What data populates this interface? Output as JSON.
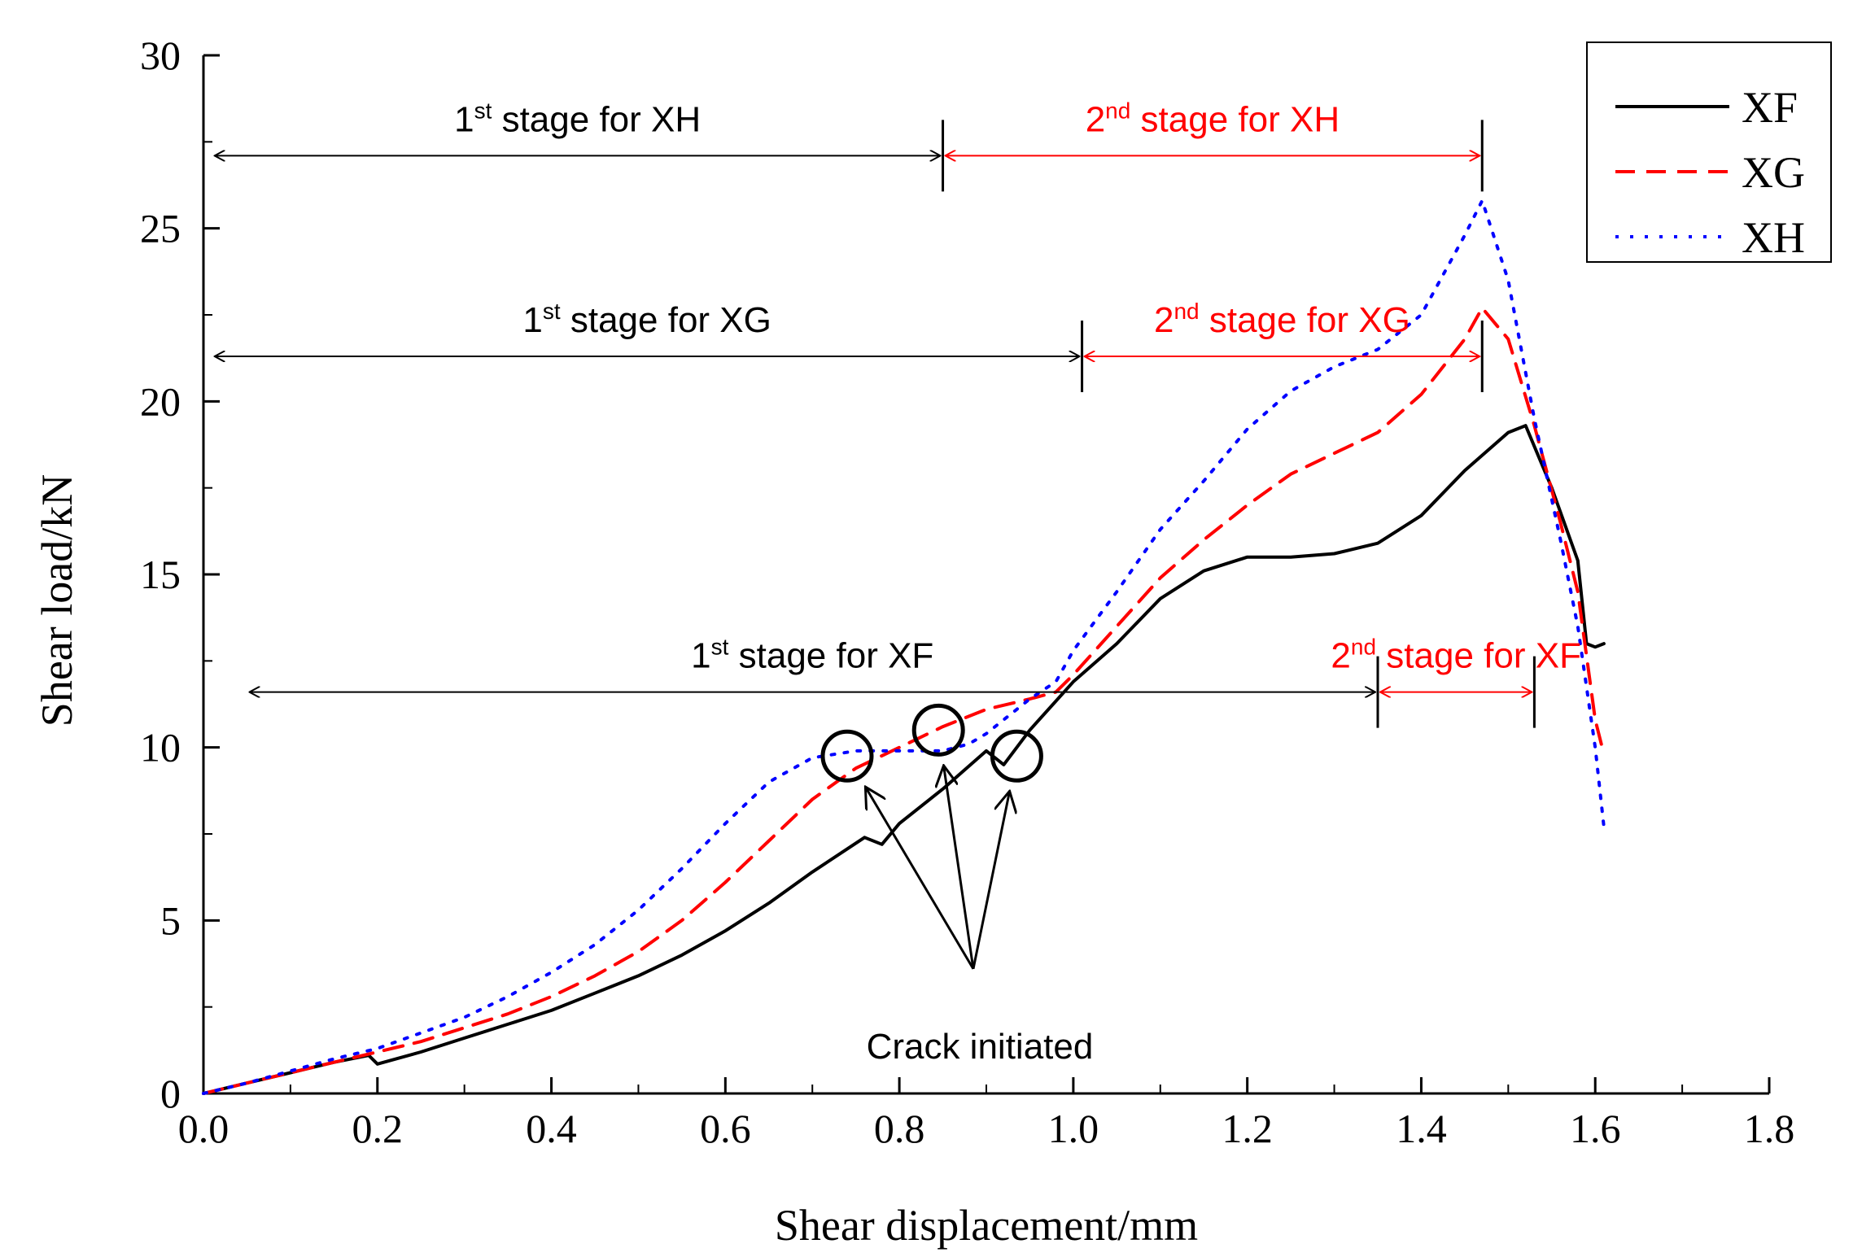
{
  "chart_data": {
    "type": "line",
    "title": "",
    "xlabel": "Shear displacement/mm",
    "ylabel": "Shear load/kN",
    "xlim": [
      0,
      1.8
    ],
    "ylim": [
      0,
      30
    ],
    "xticks": [
      0.0,
      0.2,
      0.4,
      0.6,
      0.8,
      1.0,
      1.2,
      1.4,
      1.6,
      1.8
    ],
    "xtick_labels": [
      "0.0",
      "0.2",
      "0.4",
      "0.6",
      "0.8",
      "1.0",
      "1.2",
      "1.4",
      "1.6",
      "1.8"
    ],
    "yticks": [
      0,
      5,
      10,
      15,
      20,
      25,
      30
    ],
    "ytick_labels": [
      "0",
      "5",
      "10",
      "15",
      "20",
      "25",
      "30"
    ],
    "grid": false,
    "legend_position": "top-right",
    "series": [
      {
        "name": "XF",
        "color": "#000000",
        "style": "solid",
        "x": [
          0.0,
          0.05,
          0.1,
          0.15,
          0.19,
          0.2,
          0.25,
          0.3,
          0.35,
          0.4,
          0.45,
          0.5,
          0.55,
          0.6,
          0.65,
          0.7,
          0.76,
          0.78,
          0.8,
          0.85,
          0.9,
          0.92,
          0.95,
          1.0,
          1.05,
          1.1,
          1.15,
          1.2,
          1.25,
          1.3,
          1.35,
          1.4,
          1.45,
          1.5,
          1.52,
          1.55,
          1.58,
          1.59,
          1.6,
          1.61
        ],
        "y": [
          0.0,
          0.3,
          0.6,
          0.9,
          1.1,
          0.85,
          1.2,
          1.6,
          2.0,
          2.4,
          2.9,
          3.4,
          4.0,
          4.7,
          5.5,
          6.4,
          7.4,
          7.2,
          7.8,
          8.8,
          9.9,
          9.5,
          10.5,
          11.9,
          13.0,
          14.3,
          15.1,
          15.5,
          15.5,
          15.6,
          15.9,
          16.7,
          18.0,
          19.1,
          19.3,
          17.5,
          15.4,
          13.0,
          12.9,
          13.0
        ]
      },
      {
        "name": "XG",
        "color": "#ff0000",
        "style": "dashed",
        "x": [
          0.0,
          0.05,
          0.1,
          0.15,
          0.2,
          0.25,
          0.3,
          0.35,
          0.4,
          0.45,
          0.5,
          0.55,
          0.6,
          0.65,
          0.7,
          0.75,
          0.8,
          0.85,
          0.9,
          0.95,
          0.98,
          1.0,
          1.05,
          1.1,
          1.15,
          1.2,
          1.25,
          1.3,
          1.35,
          1.4,
          1.45,
          1.47,
          1.5,
          1.53,
          1.56,
          1.58,
          1.6,
          1.61
        ],
        "y": [
          0.0,
          0.3,
          0.6,
          0.9,
          1.2,
          1.5,
          1.9,
          2.3,
          2.8,
          3.4,
          4.1,
          5.0,
          6.1,
          7.3,
          8.5,
          9.4,
          10.0,
          10.6,
          11.1,
          11.4,
          11.6,
          12.1,
          13.5,
          14.9,
          16.0,
          17.0,
          17.9,
          18.5,
          19.1,
          20.2,
          21.8,
          22.7,
          21.8,
          19.3,
          16.5,
          14.5,
          10.8,
          9.8
        ]
      },
      {
        "name": "XH",
        "color": "#0000ff",
        "style": "dotted",
        "x": [
          0.0,
          0.05,
          0.1,
          0.15,
          0.2,
          0.25,
          0.3,
          0.35,
          0.4,
          0.45,
          0.5,
          0.55,
          0.6,
          0.65,
          0.7,
          0.75,
          0.8,
          0.85,
          0.88,
          0.9,
          0.93,
          0.95,
          0.98,
          1.0,
          1.05,
          1.1,
          1.15,
          1.2,
          1.25,
          1.3,
          1.35,
          1.4,
          1.45,
          1.47,
          1.5,
          1.53,
          1.56,
          1.58,
          1.6,
          1.61
        ],
        "y": [
          0.0,
          0.3,
          0.65,
          1.0,
          1.3,
          1.75,
          2.2,
          2.8,
          3.5,
          4.3,
          5.3,
          6.5,
          7.8,
          9.0,
          9.7,
          9.9,
          9.9,
          9.9,
          10.1,
          10.4,
          11.0,
          11.4,
          11.9,
          12.8,
          14.5,
          16.3,
          17.7,
          19.2,
          20.3,
          21.0,
          21.5,
          22.5,
          24.8,
          25.8,
          23.5,
          19.5,
          16.0,
          13.5,
          10.0,
          7.7
        ]
      }
    ],
    "annotations": {
      "xh_stage1": {
        "main": "1",
        "sup": "st",
        "rest": " stage for XH",
        "color": "#000000",
        "x_range": [
          0.01,
          0.85
        ],
        "y": 27.1
      },
      "xh_stage2": {
        "main": "2",
        "sup": "nd",
        "rest": " stage for XH",
        "color": "#ff0000",
        "x_range": [
          0.85,
          1.47
        ],
        "y": 27.1
      },
      "xg_stage1": {
        "main": "1",
        "sup": "st",
        "rest": " stage for XG",
        "color": "#000000",
        "x_range": [
          0.01,
          1.01
        ],
        "y": 21.3
      },
      "xg_stage2": {
        "main": "2",
        "sup": "nd",
        "rest": " stage for XG",
        "color": "#ff0000",
        "x_range": [
          1.01,
          1.47
        ],
        "y": 21.3
      },
      "xf_stage1": {
        "main": "1",
        "sup": "st",
        "rest": " stage for XF",
        "color": "#000000",
        "x_range": [
          0.05,
          1.35
        ],
        "y": 11.6
      },
      "xf_stage2": {
        "main": "2",
        "sup": "nd",
        "rest": " stage for XF",
        "color": "#ff0000",
        "x_range": [
          1.35,
          1.53
        ],
        "y": 11.6
      },
      "crack": {
        "label": "Crack initiated",
        "points": [
          {
            "x": 0.74,
            "y": 9.75
          },
          {
            "x": 0.845,
            "y": 10.5
          },
          {
            "x": 0.935,
            "y": 9.75
          }
        ],
        "arrow_origin": {
          "x": 0.885,
          "y": 3.6
        }
      }
    }
  }
}
